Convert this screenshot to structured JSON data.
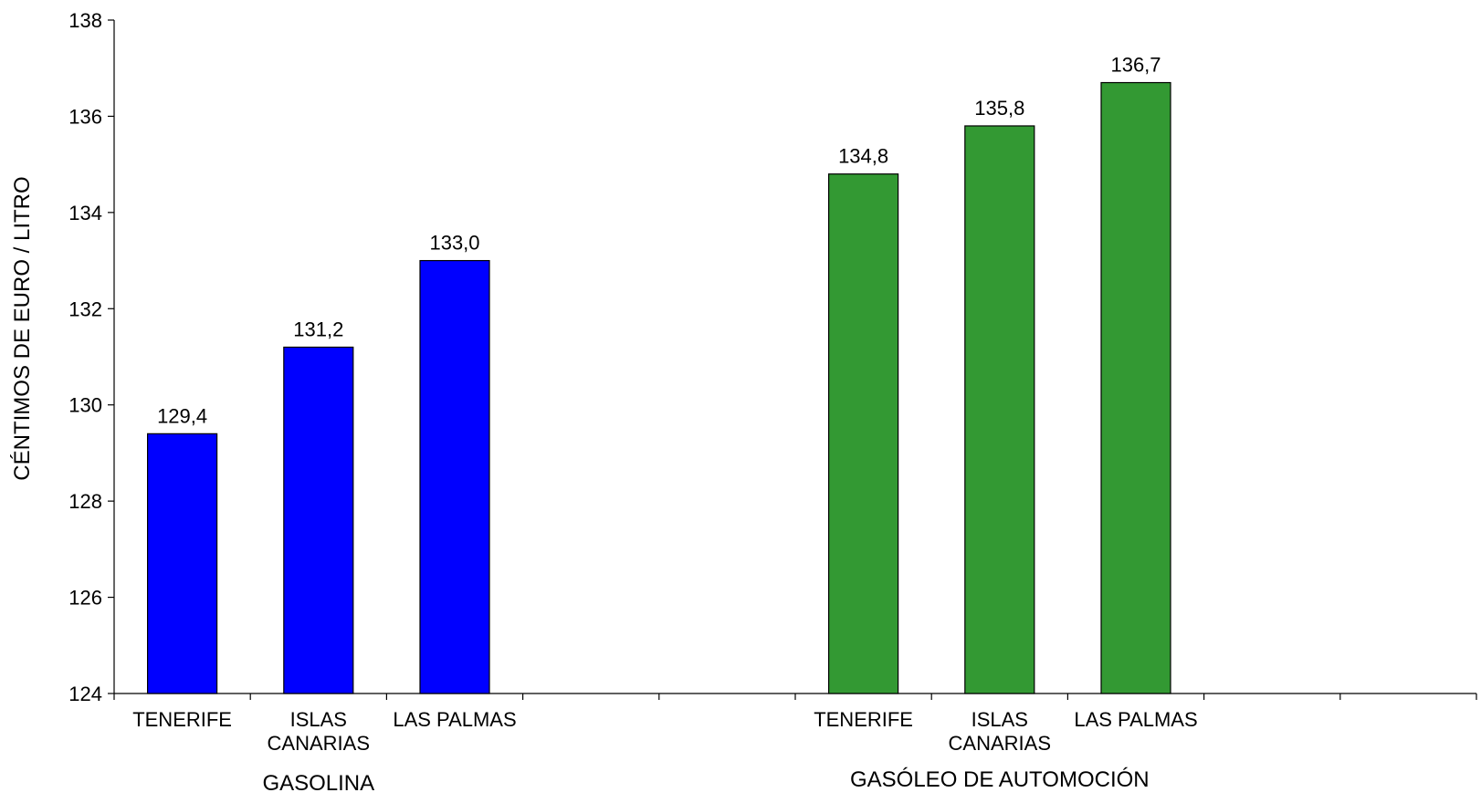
{
  "chart_data": {
    "type": "bar",
    "ylabel": "CÉNTIMOS DE EURO / LITRO",
    "ylim": [
      124,
      138
    ],
    "yticks": [
      124,
      126,
      128,
      130,
      132,
      134,
      136,
      138
    ],
    "grid": false,
    "slots": 10,
    "categories": [
      [
        "TENERIFE"
      ],
      [
        "ISLAS",
        "CANARIAS"
      ],
      [
        "LAS PALMAS"
      ],
      [],
      [],
      [
        "TENERIFE"
      ],
      [
        "ISLAS",
        "CANARIAS"
      ],
      [
        "LAS PALMAS"
      ]
    ],
    "groups": [
      {
        "name": "GASOLINA",
        "color": "#0000FF",
        "bars": [
          {
            "category": "TENERIFE",
            "value": 129.4,
            "label": "129,4"
          },
          {
            "category": "ISLAS CANARIAS",
            "value": 131.2,
            "label": "131,2"
          },
          {
            "category": "LAS PALMAS",
            "value": 133.0,
            "label": "133,0"
          }
        ]
      },
      {
        "name": "GASÓLEO DE AUTOMOCIÓN",
        "color": "#339933",
        "bars": [
          {
            "category": "TENERIFE",
            "value": 134.8,
            "label": "134,8"
          },
          {
            "category": "ISLAS CANARIAS",
            "value": 135.8,
            "label": "135,8"
          },
          {
            "category": "LAS PALMAS",
            "value": 136.7,
            "label": "136,7"
          }
        ]
      }
    ]
  }
}
